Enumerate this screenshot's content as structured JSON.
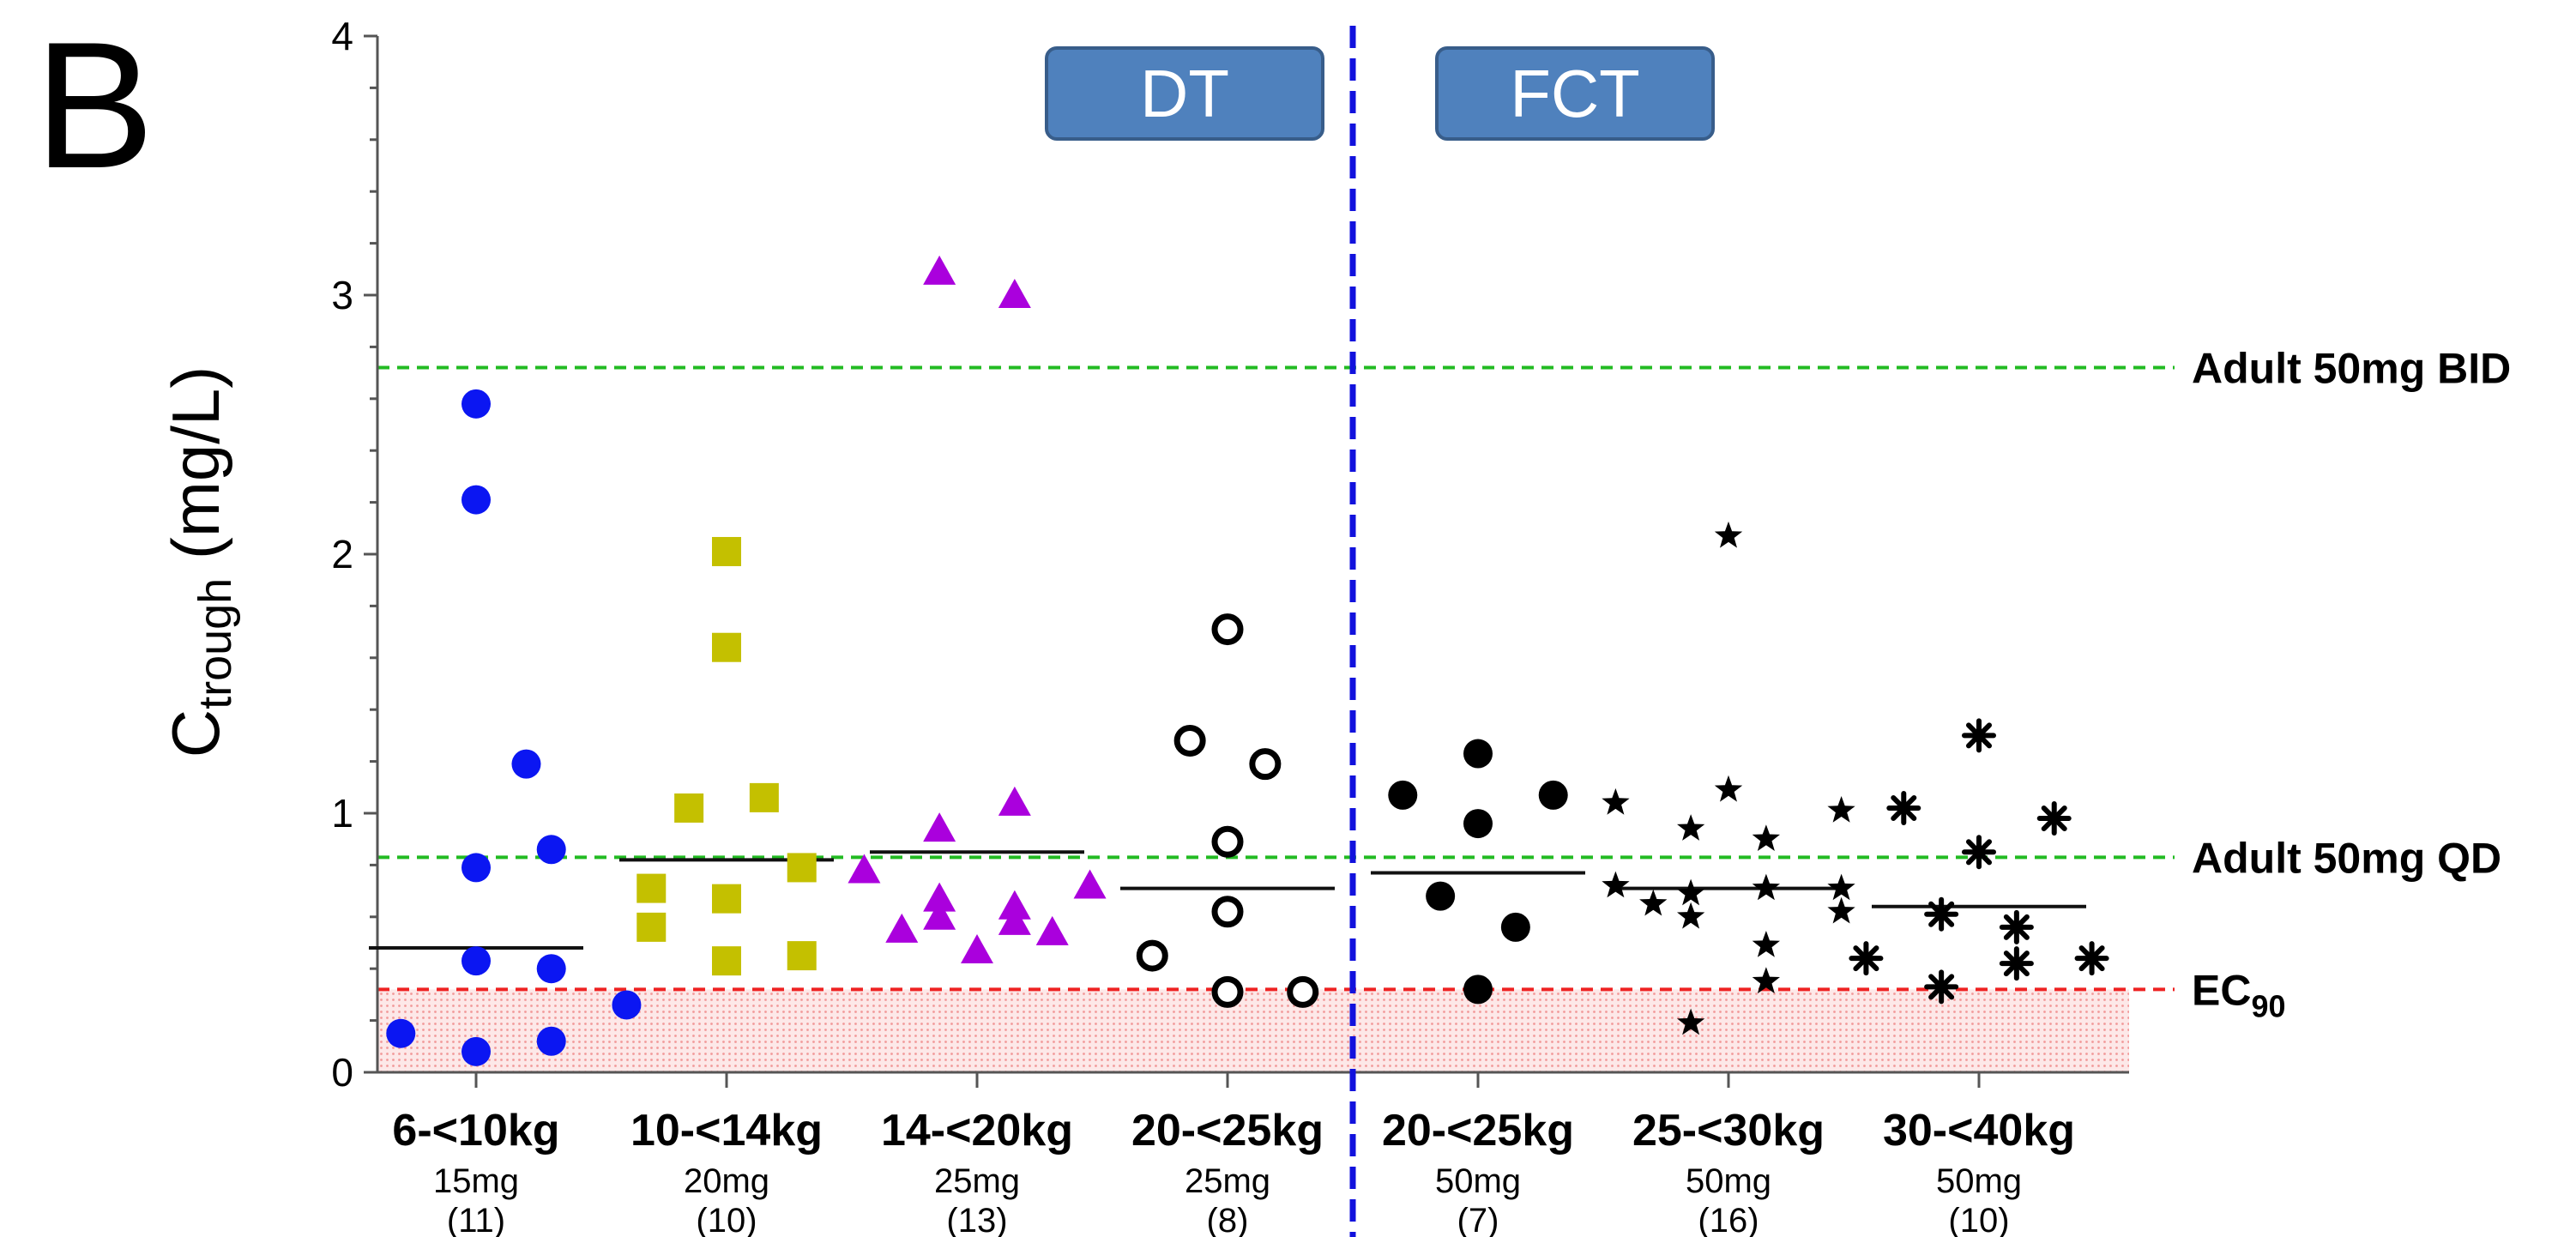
{
  "panel_label": "B",
  "chart_data": {
    "type": "scatter",
    "ylabel_main": "C",
    "ylabel_sub": "trough",
    "ylabel_unit": " (mg/L)",
    "ylim": [
      0,
      4
    ],
    "yticks": [
      "0",
      "1",
      "2",
      "3",
      "4"
    ],
    "groups": [
      {
        "label": "DT",
        "color": "#4f81bd"
      },
      {
        "label": "FCT",
        "color": "#4f81bd"
      }
    ],
    "reference_lines": [
      {
        "name": "Adult 50mg BID",
        "value": 2.72,
        "color": "#22bb22"
      },
      {
        "name": "Adult 50mg QD",
        "value": 0.83,
        "color": "#22bb22"
      },
      {
        "name": "EC",
        "sub": "90",
        "value": 0.32,
        "color": "#ee2222"
      }
    ],
    "categories": [
      {
        "weight": "6-<10kg",
        "dose": "15mg",
        "n": "(11)",
        "marker": "circle",
        "color": "#0b16f2",
        "median": 0.48,
        "points": [
          [
            0,
            2.58
          ],
          [
            0,
            2.21
          ],
          [
            0.2,
            1.19
          ],
          [
            0.3,
            0.86
          ],
          [
            0,
            0.79
          ],
          [
            0,
            0.43
          ],
          [
            0.3,
            0.4
          ],
          [
            0.6,
            0.26
          ],
          [
            -0.3,
            0.15
          ],
          [
            0,
            0.08
          ],
          [
            0.3,
            0.12
          ]
        ]
      },
      {
        "weight": "10-<14kg",
        "dose": "20mg",
        "n": "(10)",
        "marker": "square",
        "color": "#c4c000",
        "median": 0.82,
        "points": [
          [
            0,
            2.01
          ],
          [
            0,
            1.64
          ],
          [
            -0.15,
            1.02
          ],
          [
            0.15,
            1.06
          ],
          [
            -0.3,
            0.71
          ],
          [
            0,
            0.67
          ],
          [
            0.3,
            0.79
          ],
          [
            -0.3,
            0.56
          ],
          [
            0,
            0.43
          ],
          [
            0.3,
            0.45
          ]
        ]
      },
      {
        "weight": "14-<20kg",
        "dose": "25mg",
        "n": "(13)",
        "marker": "triangle",
        "color": "#aa00dd",
        "median": 0.85,
        "points": [
          [
            -0.15,
            3.09
          ],
          [
            0.15,
            3.0
          ],
          [
            -0.15,
            0.94
          ],
          [
            0.15,
            1.04
          ],
          [
            -0.45,
            0.78
          ],
          [
            -0.15,
            0.67
          ],
          [
            -0.15,
            0.6
          ],
          [
            0.15,
            0.64
          ],
          [
            0.45,
            0.72
          ],
          [
            -0.3,
            0.55
          ],
          [
            0,
            0.47
          ],
          [
            0.15,
            0.58
          ],
          [
            0.3,
            0.54
          ]
        ]
      },
      {
        "weight": "20-<25kg",
        "dose": "25mg",
        "n": "(8)",
        "marker": "open-circle",
        "color": "#000000",
        "median": 0.71,
        "points": [
          [
            0,
            1.71
          ],
          [
            -0.15,
            1.28
          ],
          [
            0.15,
            1.19
          ],
          [
            0,
            0.89
          ],
          [
            0,
            0.62
          ],
          [
            -0.3,
            0.45
          ],
          [
            0,
            0.31
          ],
          [
            0.3,
            0.31
          ]
        ]
      },
      {
        "weight": "20-<25kg",
        "dose": "50mg",
        "n": "(7)",
        "marker": "circle",
        "color": "#000000",
        "median": 0.77,
        "points": [
          [
            -0.3,
            1.07
          ],
          [
            0,
            1.23
          ],
          [
            0.3,
            1.07
          ],
          [
            0,
            0.96
          ],
          [
            -0.15,
            0.68
          ],
          [
            0.15,
            0.56
          ],
          [
            0,
            0.32
          ]
        ]
      },
      {
        "weight": "25-<30kg",
        "dose": "50mg",
        "n": "(16)",
        "marker": "star",
        "color": "#000000",
        "median": 0.71,
        "points": [
          [
            0,
            2.07
          ],
          [
            -0.45,
            1.04
          ],
          [
            -0.15,
            0.94
          ],
          [
            0,
            1.09
          ],
          [
            0.15,
            0.9
          ],
          [
            0.45,
            1.01
          ],
          [
            -0.45,
            0.72
          ],
          [
            -0.3,
            0.65
          ],
          [
            -0.15,
            0.69
          ],
          [
            0.15,
            0.71
          ],
          [
            0.45,
            0.71
          ],
          [
            -0.15,
            0.6
          ],
          [
            0.45,
            0.62
          ],
          [
            0.15,
            0.49
          ],
          [
            0.15,
            0.35
          ],
          [
            -0.15,
            0.19
          ]
        ]
      },
      {
        "weight": "30-<40kg",
        "dose": "50mg",
        "n": "(10)",
        "marker": "asterisk",
        "color": "#000000",
        "median": 0.64,
        "points": [
          [
            0,
            1.3
          ],
          [
            -0.3,
            1.02
          ],
          [
            0.3,
            0.98
          ],
          [
            0,
            0.85
          ],
          [
            -0.15,
            0.61
          ],
          [
            0.15,
            0.56
          ],
          [
            -0.45,
            0.44
          ],
          [
            0.15,
            0.42
          ],
          [
            0.45,
            0.44
          ],
          [
            -0.15,
            0.33
          ]
        ]
      }
    ]
  }
}
